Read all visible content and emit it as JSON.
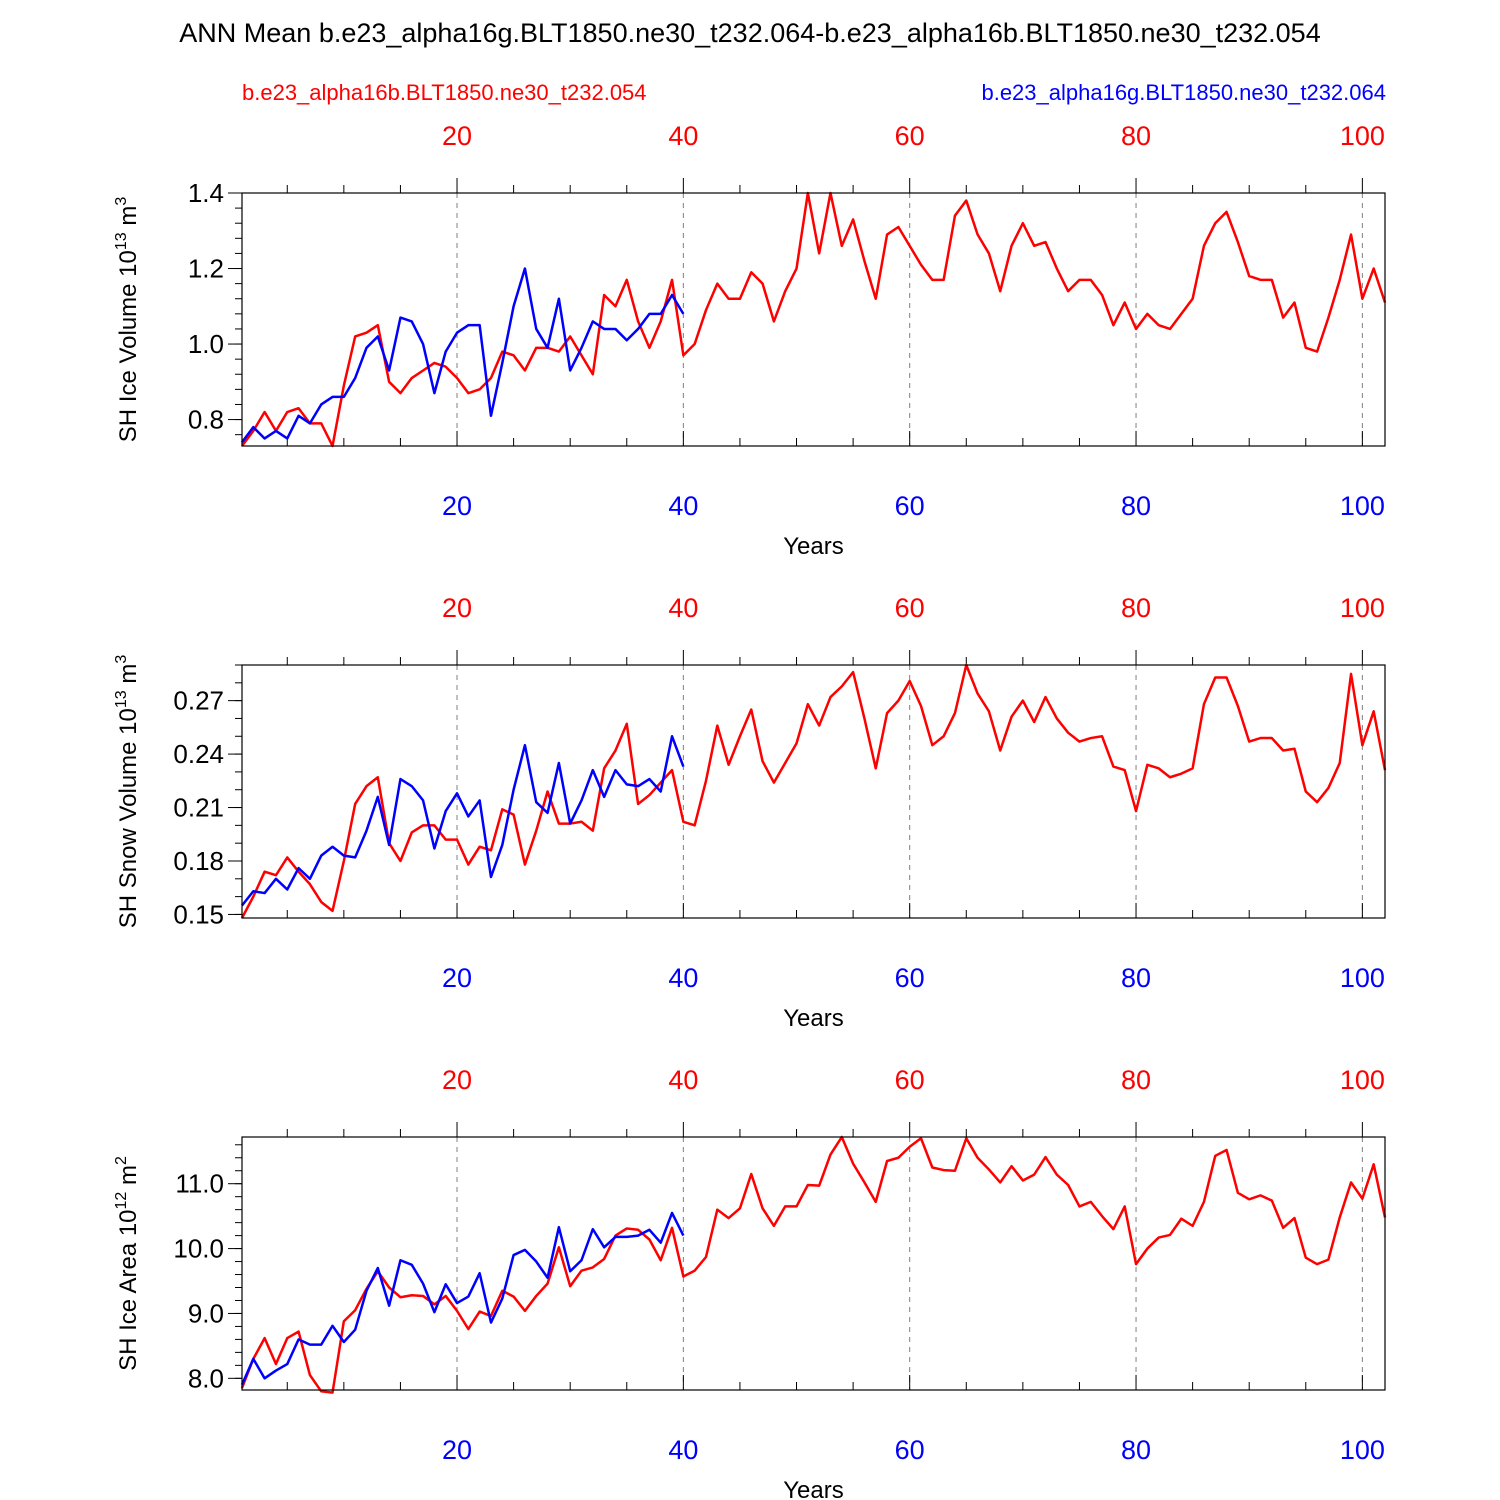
{
  "title": "ANN Mean b.e23_alpha16g.BLT1850.ne30_t232.064-b.e23_alpha16b.BLT1850.ne30_t232.054",
  "legend": {
    "red_label": "b.e23_alpha16b.BLT1850.ne30_t232.054",
    "blue_label": "b.e23_alpha16g.BLT1850.ne30_t232.064"
  },
  "colors": {
    "red": "#ff0000",
    "blue": "#0000ff",
    "axis": "#000000",
    "grid": "#808080"
  },
  "chart_data": [
    {
      "type": "line",
      "ylabel": "SH Ice Volume 10",
      "ylabel_exp": "13",
      "ylabel_unit": " m",
      "ylabel_unit_exp": "3",
      "xlabel": "Years",
      "xlim": [
        1,
        102
      ],
      "ylim": [
        0.73,
        1.4
      ],
      "yticks": [
        0.8,
        1.0,
        1.2,
        1.4
      ],
      "ytick_labels": [
        "0.8",
        "1.0",
        "1.2",
        "1.4"
      ],
      "yminor_step": 0.04,
      "xticks": [
        20,
        40,
        60,
        80,
        100
      ],
      "xtick_labels": [
        "20",
        "40",
        "60",
        "80",
        "100"
      ],
      "series": [
        {
          "name": "b.e23_alpha16b.BLT1850.ne30_t232.054",
          "color": "red",
          "x_start": 1,
          "values": [
            0.73,
            0.77,
            0.82,
            0.77,
            0.82,
            0.83,
            0.79,
            0.79,
            0.73,
            0.89,
            1.02,
            1.03,
            1.05,
            0.9,
            0.87,
            0.91,
            0.93,
            0.95,
            0.94,
            0.91,
            0.87,
            0.88,
            0.91,
            0.98,
            0.97,
            0.93,
            0.99,
            0.99,
            0.98,
            1.02,
            0.97,
            0.92,
            1.13,
            1.1,
            1.17,
            1.06,
            0.99,
            1.06,
            1.17,
            0.97,
            1.0,
            1.09,
            1.16,
            1.12,
            1.12,
            1.19,
            1.16,
            1.06,
            1.14,
            1.2,
            1.4,
            1.24,
            1.4,
            1.26,
            1.33,
            1.22,
            1.12,
            1.29,
            1.31,
            1.26,
            1.21,
            1.17,
            1.17,
            1.34,
            1.38,
            1.29,
            1.24,
            1.14,
            1.26,
            1.32,
            1.26,
            1.27,
            1.2,
            1.14,
            1.17,
            1.17,
            1.13,
            1.05,
            1.11,
            1.04,
            1.08,
            1.05,
            1.04,
            1.08,
            1.12,
            1.26,
            1.32,
            1.35,
            1.27,
            1.18,
            1.17,
            1.17,
            1.07,
            1.11,
            0.99,
            0.98,
            1.07,
            1.17,
            1.29,
            1.12,
            1.2,
            1.11
          ]
        },
        {
          "name": "b.e23_alpha16g.BLT1850.ne30_t232.064",
          "color": "blue",
          "x_start": 1,
          "values": [
            0.74,
            0.78,
            0.75,
            0.77,
            0.75,
            0.81,
            0.79,
            0.84,
            0.86,
            0.86,
            0.91,
            0.99,
            1.02,
            0.93,
            1.07,
            1.06,
            1.0,
            0.87,
            0.98,
            1.03,
            1.05,
            1.05,
            0.81,
            0.95,
            1.1,
            1.2,
            1.04,
            0.99,
            1.12,
            0.93,
            0.99,
            1.06,
            1.04,
            1.04,
            1.01,
            1.04,
            1.08,
            1.08,
            1.13,
            1.08
          ]
        }
      ]
    },
    {
      "type": "line",
      "ylabel": "SH Snow Volume 10",
      "ylabel_exp": "13",
      "ylabel_unit": " m",
      "ylabel_unit_exp": "3",
      "xlabel": "Years",
      "xlim": [
        1,
        102
      ],
      "ylim": [
        0.148,
        0.29
      ],
      "yticks": [
        0.15,
        0.18,
        0.21,
        0.24,
        0.27
      ],
      "ytick_labels": [
        "0.15",
        "0.18",
        "0.21",
        "0.24",
        "0.27"
      ],
      "yminor_step": 0.01,
      "xticks": [
        20,
        40,
        60,
        80,
        100
      ],
      "xtick_labels": [
        "20",
        "40",
        "60",
        "80",
        "100"
      ],
      "series": [
        {
          "name": "b.e23_alpha16b.BLT1850.ne30_t232.054",
          "color": "red",
          "x_start": 1,
          "values": [
            0.148,
            0.16,
            0.174,
            0.172,
            0.182,
            0.174,
            0.167,
            0.157,
            0.152,
            0.18,
            0.212,
            0.222,
            0.227,
            0.19,
            0.18,
            0.196,
            0.2,
            0.2,
            0.192,
            0.192,
            0.178,
            0.188,
            0.186,
            0.209,
            0.206,
            0.178,
            0.197,
            0.219,
            0.201,
            0.201,
            0.202,
            0.197,
            0.232,
            0.242,
            0.257,
            0.212,
            0.217,
            0.224,
            0.231,
            0.202,
            0.2,
            0.225,
            0.256,
            0.234,
            0.25,
            0.265,
            0.236,
            0.224,
            0.235,
            0.246,
            0.268,
            0.256,
            0.272,
            0.278,
            0.286,
            0.26,
            0.232,
            0.263,
            0.27,
            0.281,
            0.267,
            0.245,
            0.25,
            0.263,
            0.29,
            0.274,
            0.264,
            0.242,
            0.261,
            0.27,
            0.258,
            0.272,
            0.26,
            0.252,
            0.247,
            0.249,
            0.25,
            0.233,
            0.231,
            0.208,
            0.234,
            0.232,
            0.227,
            0.229,
            0.232,
            0.268,
            0.283,
            0.283,
            0.267,
            0.247,
            0.249,
            0.249,
            0.242,
            0.243,
            0.219,
            0.213,
            0.221,
            0.235,
            0.285,
            0.245,
            0.264,
            0.231
          ]
        },
        {
          "name": "b.e23_alpha16g.BLT1850.ne30_t232.064",
          "color": "blue",
          "x_start": 1,
          "values": [
            0.155,
            0.163,
            0.162,
            0.17,
            0.164,
            0.176,
            0.17,
            0.183,
            0.188,
            0.183,
            0.182,
            0.197,
            0.216,
            0.189,
            0.226,
            0.222,
            0.214,
            0.187,
            0.208,
            0.218,
            0.205,
            0.214,
            0.171,
            0.189,
            0.22,
            0.245,
            0.213,
            0.207,
            0.235,
            0.201,
            0.214,
            0.231,
            0.216,
            0.231,
            0.223,
            0.222,
            0.226,
            0.219,
            0.25,
            0.233
          ]
        }
      ]
    },
    {
      "type": "line",
      "ylabel": "SH Ice Area 10",
      "ylabel_exp": "12",
      "ylabel_unit": " m",
      "ylabel_unit_exp": "2",
      "xlabel": "Years",
      "xlim": [
        1,
        102
      ],
      "ylim": [
        7.82,
        11.72
      ],
      "yticks": [
        8.0,
        9.0,
        10.0,
        11.0
      ],
      "ytick_labels": [
        "8.0",
        "9.0",
        "10.0",
        "11.0"
      ],
      "yminor_step": 0.2,
      "xticks": [
        20,
        40,
        60,
        80,
        100
      ],
      "xtick_labels": [
        "20",
        "40",
        "60",
        "80",
        "100"
      ],
      "series": [
        {
          "name": "b.e23_alpha16b.BLT1850.ne30_t232.054",
          "color": "red",
          "x_start": 1,
          "values": [
            7.85,
            8.3,
            8.62,
            8.22,
            8.62,
            8.72,
            8.05,
            7.8,
            7.78,
            8.88,
            9.05,
            9.38,
            9.65,
            9.4,
            9.25,
            9.28,
            9.27,
            9.14,
            9.27,
            9.04,
            8.76,
            9.03,
            8.96,
            9.35,
            9.26,
            9.04,
            9.27,
            9.46,
            10.02,
            9.42,
            9.66,
            9.71,
            9.84,
            10.2,
            10.31,
            10.29,
            10.14,
            9.82,
            10.32,
            9.57,
            9.66,
            9.87,
            10.6,
            10.47,
            10.62,
            11.15,
            10.62,
            10.35,
            10.65,
            10.65,
            10.98,
            10.97,
            11.45,
            11.72,
            11.31,
            11.02,
            10.72,
            11.35,
            11.4,
            11.57,
            11.7,
            11.25,
            11.21,
            11.2,
            11.7,
            11.4,
            11.22,
            11.02,
            11.27,
            11.05,
            11.14,
            11.41,
            11.14,
            10.98,
            10.65,
            10.72,
            10.5,
            10.3,
            10.65,
            9.76,
            10.0,
            10.17,
            10.21,
            10.46,
            10.35,
            10.72,
            11.43,
            11.52,
            10.86,
            10.76,
            10.82,
            10.74,
            10.32,
            10.47,
            9.86,
            9.76,
            9.83,
            10.48,
            11.02,
            10.77,
            11.3,
            10.48
          ]
        },
        {
          "name": "b.e23_alpha16g.BLT1850.ne30_t232.064",
          "color": "blue",
          "x_start": 1,
          "values": [
            7.9,
            8.3,
            8.0,
            8.12,
            8.22,
            8.6,
            8.52,
            8.52,
            8.81,
            8.56,
            8.75,
            9.35,
            9.7,
            9.12,
            9.82,
            9.75,
            9.46,
            9.02,
            9.45,
            9.16,
            9.26,
            9.62,
            8.86,
            9.23,
            9.9,
            9.98,
            9.8,
            9.55,
            10.33,
            9.65,
            9.82,
            10.3,
            10.02,
            10.18,
            10.18,
            10.2,
            10.29,
            10.09,
            10.55,
            10.2
          ]
        }
      ]
    }
  ]
}
